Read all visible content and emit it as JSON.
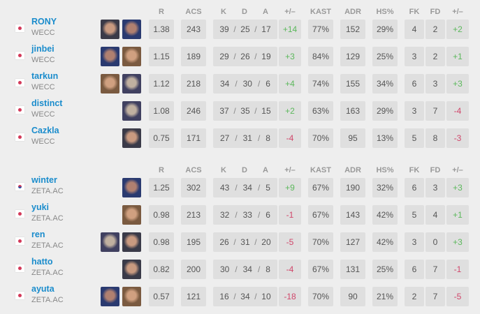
{
  "headers": [
    "R",
    "ACS",
    "K",
    "D",
    "A",
    "+/–",
    "KAST",
    "ADR",
    "HS%",
    "FK",
    "FD",
    "+/–"
  ],
  "colors": {
    "positive": "#5cb85c",
    "negative": "#d0466a",
    "name": "#1a8ccc"
  },
  "teams": [
    {
      "players": [
        {
          "name": "RONY",
          "team": "WECC",
          "flag": "jp",
          "agents": [
            "agent-portrait-1",
            "agent-portrait-2"
          ],
          "stats": [
            "1.38",
            "243",
            "39",
            "25",
            "17",
            "+14",
            "77%",
            "152",
            "29%",
            "4",
            "2",
            "+2"
          ]
        },
        {
          "name": "jinbei",
          "team": "WECC",
          "flag": "jp",
          "agents": [
            "agent-portrait-1",
            "agent-portrait-2"
          ],
          "stats": [
            "1.15",
            "189",
            "29",
            "26",
            "19",
            "+3",
            "84%",
            "129",
            "25%",
            "3",
            "2",
            "+1"
          ]
        },
        {
          "name": "tarkun",
          "team": "WECC",
          "flag": "jp",
          "agents": [
            "agent-portrait-1",
            "agent-portrait-2"
          ],
          "stats": [
            "1.12",
            "218",
            "34",
            "30",
            "6",
            "+4",
            "74%",
            "155",
            "34%",
            "6",
            "3",
            "+3"
          ]
        },
        {
          "name": "distinct",
          "team": "WECC",
          "flag": "jp",
          "agents": [
            "agent-portrait-1"
          ],
          "stats": [
            "1.08",
            "246",
            "37",
            "35",
            "15",
            "+2",
            "63%",
            "163",
            "29%",
            "3",
            "7",
            "-4"
          ]
        },
        {
          "name": "Cazkla",
          "team": "WECC",
          "flag": "jp",
          "agents": [
            "agent-portrait-1"
          ],
          "stats": [
            "0.75",
            "171",
            "27",
            "31",
            "8",
            "-4",
            "70%",
            "95",
            "13%",
            "5",
            "8",
            "-3"
          ]
        }
      ]
    },
    {
      "players": [
        {
          "name": "winter",
          "team": "ZETA.AC",
          "flag": "kr",
          "agents": [
            "agent-portrait-1"
          ],
          "stats": [
            "1.25",
            "302",
            "43",
            "34",
            "5",
            "+9",
            "67%",
            "190",
            "32%",
            "6",
            "3",
            "+3"
          ]
        },
        {
          "name": "yuki",
          "team": "ZETA.AC",
          "flag": "jp",
          "agents": [
            "agent-portrait-1"
          ],
          "stats": [
            "0.98",
            "213",
            "32",
            "33",
            "6",
            "-1",
            "67%",
            "143",
            "42%",
            "5",
            "4",
            "+1"
          ]
        },
        {
          "name": "ren",
          "team": "ZETA.AC",
          "flag": "jp",
          "agents": [
            "agent-portrait-1",
            "agent-portrait-2"
          ],
          "stats": [
            "0.98",
            "195",
            "26",
            "31",
            "20",
            "-5",
            "70%",
            "127",
            "42%",
            "3",
            "0",
            "+3"
          ]
        },
        {
          "name": "hatto",
          "team": "ZETA.AC",
          "flag": "jp",
          "agents": [
            "agent-portrait-1"
          ],
          "stats": [
            "0.82",
            "200",
            "30",
            "34",
            "8",
            "-4",
            "67%",
            "131",
            "25%",
            "6",
            "7",
            "-1"
          ]
        },
        {
          "name": "ayuta",
          "team": "ZETA.AC",
          "flag": "jp",
          "agents": [
            "agent-portrait-1",
            "agent-portrait-2"
          ],
          "stats": [
            "0.57",
            "121",
            "16",
            "34",
            "10",
            "-18",
            "70%",
            "90",
            "21%",
            "2",
            "7",
            "-5"
          ]
        }
      ]
    }
  ]
}
